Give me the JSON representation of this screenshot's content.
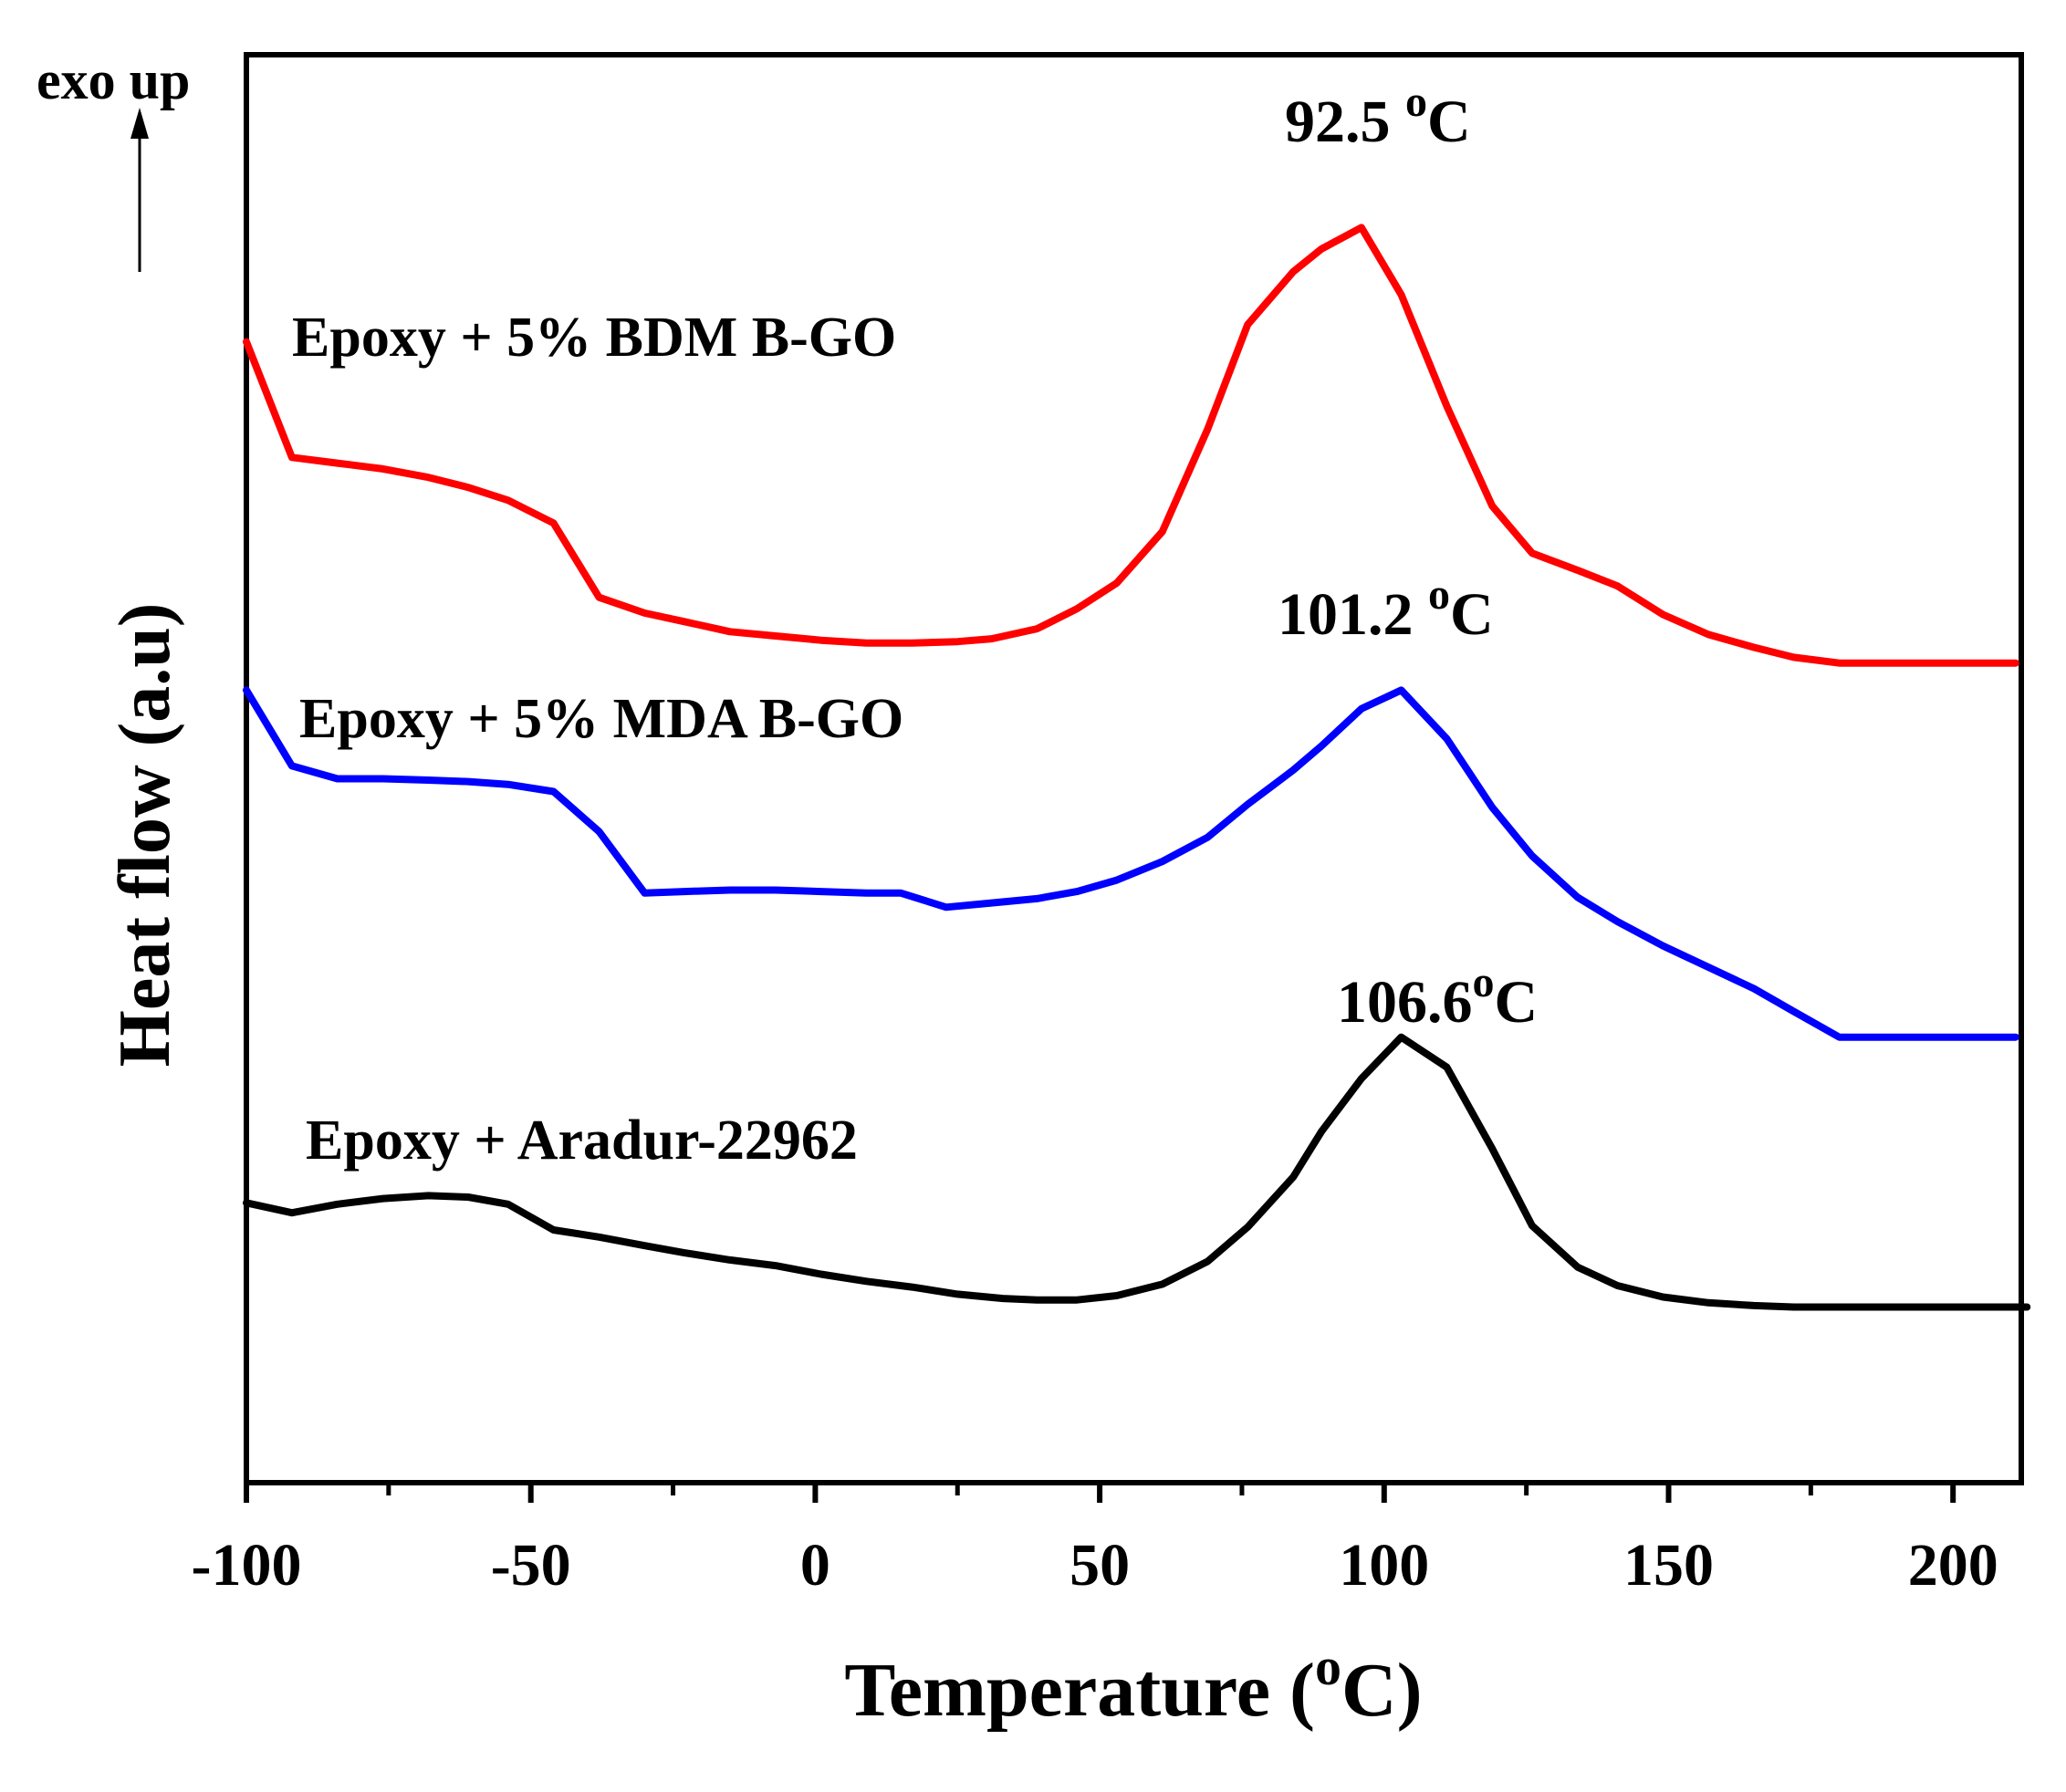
{
  "chart_data": {
    "type": "line",
    "title": "",
    "xlabel": "Temperature (°C)",
    "xlabel_prefix": "Temperature (",
    "xlabel_sup": "o",
    "xlabel_suffix": "C)",
    "ylabel": "Heat flow (a.u)",
    "exo_label": "exo up",
    "xlim": [
      -100,
      212
    ],
    "ylim": [
      0,
      100
    ],
    "x_ticks": [
      -100,
      -50,
      0,
      50,
      100,
      150,
      200
    ],
    "x_tick_labels": [
      "-100",
      "-50",
      "0",
      "50",
      "100",
      "150",
      "200"
    ],
    "y_ticks_shown": false,
    "grid": false,
    "series": [
      {
        "name": "Epoxy + 5% BDM B-GO",
        "color": "#ff0000",
        "peak_label": "92.5 ",
        "peak_x": 96,
        "peak_y": 92.3,
        "x": [
          -100,
          -92,
          -84,
          -76,
          -68,
          -61,
          -54,
          -46,
          -38,
          -30,
          -23,
          -15,
          -7,
          1,
          9,
          17,
          25,
          31,
          39,
          46,
          53,
          61,
          69,
          76,
          84,
          89,
          96,
          103,
          111,
          119,
          126,
          134,
          141,
          149,
          157,
          165,
          172,
          180,
          188,
          196,
          204,
          211
        ],
        "y": [
          79.9,
          71.8,
          71.4,
          71.0,
          70.4,
          69.7,
          68.8,
          67.2,
          62.0,
          60.9,
          60.3,
          59.6,
          59.3,
          59.0,
          58.8,
          58.8,
          58.9,
          59.1,
          59.8,
          61.2,
          63.0,
          66.6,
          73.8,
          81.1,
          84.8,
          86.4,
          87.9,
          83.2,
          75.4,
          68.4,
          65.1,
          63.9,
          62.8,
          60.8,
          59.4,
          58.5,
          57.8,
          57.4,
          57.4,
          57.4,
          57.4,
          57.4
        ]
      },
      {
        "name": "Epoxy + 5% MDA B-GO",
        "color": "#0000ff",
        "peak_label": "101.2 ",
        "peak_x": 103,
        "peak_y": 58.3,
        "x": [
          -100,
          -92,
          -84,
          -76,
          -68,
          -61,
          -54,
          -46,
          -38,
          -30,
          -23,
          -15,
          -7,
          1,
          9,
          15,
          23,
          31,
          39,
          46,
          53,
          61,
          69,
          76,
          84,
          89,
          96,
          103,
          111,
          119,
          126,
          134,
          141,
          149,
          157,
          165,
          172,
          180,
          188,
          196,
          204,
          211
        ],
        "y": [
          55.5,
          50.2,
          49.3,
          49.3,
          49.2,
          49.1,
          48.9,
          48.4,
          45.6,
          41.3,
          41.4,
          41.5,
          41.5,
          41.4,
          41.3,
          41.3,
          40.3,
          40.6,
          40.9,
          41.4,
          42.2,
          43.5,
          45.2,
          47.5,
          49.9,
          51.6,
          54.2,
          55.5,
          52.1,
          47.3,
          43.9,
          41.0,
          39.3,
          37.6,
          36.1,
          34.6,
          33.0,
          31.2,
          31.2,
          31.2,
          31.2,
          31.2
        ]
      },
      {
        "name": "Epoxy + Aradur-22962",
        "color": "#000000",
        "peak_label": "106.6",
        "peak_x": 109,
        "peak_y": 32.0,
        "x": [
          -100,
          -92,
          -84,
          -76,
          -68,
          -61,
          -54,
          -46,
          -38,
          -30,
          -23,
          -15,
          -7,
          1,
          9,
          17,
          25,
          33,
          39,
          46,
          53,
          61,
          69,
          76,
          84,
          89,
          96,
          103,
          111,
          119,
          126,
          134,
          141,
          149,
          157,
          165,
          172,
          180,
          188,
          196,
          204,
          213
        ],
        "y": [
          19.6,
          18.9,
          19.5,
          19.9,
          20.1,
          20.0,
          19.5,
          17.7,
          17.2,
          16.6,
          16.1,
          15.6,
          15.2,
          14.6,
          14.1,
          13.7,
          13.2,
          12.9,
          12.8,
          12.8,
          13.1,
          13.9,
          15.5,
          17.9,
          21.4,
          24.6,
          28.3,
          31.2,
          29.1,
          23.4,
          18.0,
          15.1,
          13.8,
          13.0,
          12.6,
          12.4,
          12.3,
          12.3,
          12.3,
          12.3,
          12.3,
          12.3
        ]
      }
    ],
    "peak_unit_sup": "o",
    "peak_unit": "C"
  }
}
